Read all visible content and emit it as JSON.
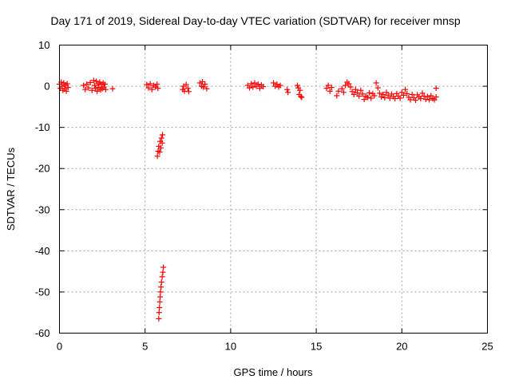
{
  "chart_data": {
    "type": "scatter",
    "title": "Day 171 of 2019, Sidereal Day-to-day VTEC variation (SDTVAR) for receiver mnsp",
    "xlabel": "GPS time / hours",
    "ylabel": "SDTVAR / TECUs",
    "xlim": [
      0,
      25
    ],
    "ylim": [
      -60,
      10
    ],
    "xticks": [
      0,
      5,
      10,
      15,
      20,
      25
    ],
    "yticks": [
      10,
      0,
      -10,
      -20,
      -30,
      -40,
      -50,
      -60
    ],
    "grid": true,
    "marker": "+",
    "marker_color": "#ff0000",
    "series": [
      {
        "name": "SDTVAR",
        "points": [
          [
            0.0,
            0.5
          ],
          [
            0.05,
            -0.5
          ],
          [
            0.1,
            1.0
          ],
          [
            0.15,
            0.0
          ],
          [
            0.2,
            -1.0
          ],
          [
            0.25,
            0.8
          ],
          [
            0.3,
            -0.6
          ],
          [
            0.35,
            0.3
          ],
          [
            0.4,
            -1.2
          ],
          [
            0.45,
            0.6
          ],
          [
            0.5,
            -0.3
          ],
          [
            1.4,
            0.2
          ],
          [
            1.5,
            -0.8
          ],
          [
            1.6,
            0.5
          ],
          [
            1.7,
            -0.4
          ],
          [
            1.8,
            0.9
          ],
          [
            1.9,
            -1.0
          ],
          [
            2.0,
            1.4
          ],
          [
            2.05,
            0.2
          ],
          [
            2.1,
            -0.5
          ],
          [
            2.15,
            1.2
          ],
          [
            2.2,
            -1.2
          ],
          [
            2.25,
            0.6
          ],
          [
            2.3,
            -0.3
          ],
          [
            2.35,
            1.0
          ],
          [
            2.4,
            -0.9
          ],
          [
            2.45,
            0.4
          ],
          [
            2.5,
            -0.6
          ],
          [
            2.55,
            0.8
          ],
          [
            2.6,
            -0.2
          ],
          [
            2.65,
            0.5
          ],
          [
            2.7,
            -0.8
          ],
          [
            3.1,
            -0.6
          ],
          [
            5.1,
            0.4
          ],
          [
            5.2,
            -0.4
          ],
          [
            5.3,
            0.6
          ],
          [
            5.4,
            -0.8
          ],
          [
            5.5,
            0.2
          ],
          [
            5.6,
            -0.2
          ],
          [
            5.7,
            0.5
          ],
          [
            5.75,
            -0.5
          ],
          [
            5.72,
            -17.0
          ],
          [
            5.76,
            -15.8
          ],
          [
            5.8,
            -14.6
          ],
          [
            5.85,
            -16.0
          ],
          [
            5.88,
            -13.4
          ],
          [
            5.92,
            -15.0
          ],
          [
            5.96,
            -12.6
          ],
          [
            6.0,
            -13.8
          ],
          [
            6.02,
            -11.8
          ],
          [
            5.8,
            -56.5
          ],
          [
            5.82,
            -55.0
          ],
          [
            5.84,
            -53.8
          ],
          [
            5.86,
            -52.4
          ],
          [
            5.88,
            -51.2
          ],
          [
            5.9,
            -50.0
          ],
          [
            5.93,
            -48.8
          ],
          [
            5.96,
            -47.6
          ],
          [
            6.0,
            -46.3
          ],
          [
            6.04,
            -45.2
          ],
          [
            6.07,
            -44.0
          ],
          [
            7.2,
            -0.8
          ],
          [
            7.25,
            0.0
          ],
          [
            7.3,
            -1.2
          ],
          [
            7.4,
            0.4
          ],
          [
            7.5,
            -0.5
          ],
          [
            7.55,
            -1.3
          ],
          [
            8.2,
            0.8
          ],
          [
            8.3,
            0.0
          ],
          [
            8.35,
            1.1
          ],
          [
            8.4,
            -0.2
          ],
          [
            8.5,
            0.5
          ],
          [
            8.6,
            -0.6
          ],
          [
            11.0,
            0.2
          ],
          [
            11.1,
            -0.4
          ],
          [
            11.2,
            0.6
          ],
          [
            11.3,
            -0.2
          ],
          [
            11.4,
            0.8
          ],
          [
            11.5,
            0.0
          ],
          [
            11.6,
            0.5
          ],
          [
            11.7,
            -0.5
          ],
          [
            11.8,
            0.3
          ],
          [
            11.9,
            -0.1
          ],
          [
            12.5,
            0.8
          ],
          [
            12.6,
            0.0
          ],
          [
            12.7,
            0.5
          ],
          [
            12.8,
            -0.2
          ],
          [
            12.9,
            0.2
          ],
          [
            13.3,
            -0.8
          ],
          [
            13.35,
            -1.5
          ],
          [
            13.9,
            0.2
          ],
          [
            13.95,
            -0.4
          ],
          [
            14.0,
            -2.0
          ],
          [
            14.05,
            -1.0
          ],
          [
            14.1,
            -2.5
          ],
          [
            14.15,
            -2.7
          ],
          [
            15.6,
            -0.5
          ],
          [
            15.7,
            0.2
          ],
          [
            15.8,
            -1.2
          ],
          [
            15.9,
            -0.3
          ],
          [
            16.2,
            -2.3
          ],
          [
            16.3,
            -1.2
          ],
          [
            16.5,
            -0.6
          ],
          [
            16.6,
            -1.5
          ],
          [
            16.7,
            0.2
          ],
          [
            16.8,
            1.0
          ],
          [
            16.9,
            0.6
          ],
          [
            17.0,
            -0.2
          ],
          [
            17.1,
            -1.3
          ],
          [
            17.2,
            -2.0
          ],
          [
            17.3,
            -0.8
          ],
          [
            17.4,
            -1.6
          ],
          [
            17.5,
            -2.4
          ],
          [
            17.6,
            -1.0
          ],
          [
            17.7,
            -1.9
          ],
          [
            17.8,
            -3.2
          ],
          [
            17.9,
            -2.4
          ],
          [
            18.0,
            -2.7
          ],
          [
            18.1,
            -1.6
          ],
          [
            18.2,
            -2.9
          ],
          [
            18.3,
            -1.8
          ],
          [
            18.4,
            -2.3
          ],
          [
            18.5,
            0.8
          ],
          [
            18.6,
            -0.4
          ],
          [
            18.7,
            -1.7
          ],
          [
            18.8,
            -2.6
          ],
          [
            18.9,
            -2.0
          ],
          [
            19.0,
            -2.8
          ],
          [
            19.1,
            -1.5
          ],
          [
            19.2,
            -2.3
          ],
          [
            19.3,
            -2.9
          ],
          [
            19.4,
            -1.9
          ],
          [
            19.5,
            -2.5
          ],
          [
            19.6,
            -3.0
          ],
          [
            19.7,
            -1.8
          ],
          [
            19.8,
            -2.4
          ],
          [
            19.9,
            -2.9
          ],
          [
            20.0,
            -1.5
          ],
          [
            20.1,
            -2.2
          ],
          [
            20.2,
            -0.8
          ],
          [
            20.3,
            -1.8
          ],
          [
            20.4,
            -2.7
          ],
          [
            20.5,
            -3.3
          ],
          [
            20.6,
            -2.0
          ],
          [
            20.7,
            -2.8
          ],
          [
            20.8,
            -3.4
          ],
          [
            20.9,
            -2.1
          ],
          [
            21.0,
            -2.6
          ],
          [
            21.1,
            -3.0
          ],
          [
            21.2,
            -1.7
          ],
          [
            21.3,
            -2.4
          ],
          [
            21.4,
            -3.2
          ],
          [
            21.5,
            -2.5
          ],
          [
            21.6,
            -3.3
          ],
          [
            21.7,
            -2.3
          ],
          [
            21.8,
            -3.0
          ],
          [
            21.9,
            -3.3
          ],
          [
            22.0,
            -0.5
          ],
          [
            22.0,
            -2.6
          ]
        ]
      }
    ]
  }
}
